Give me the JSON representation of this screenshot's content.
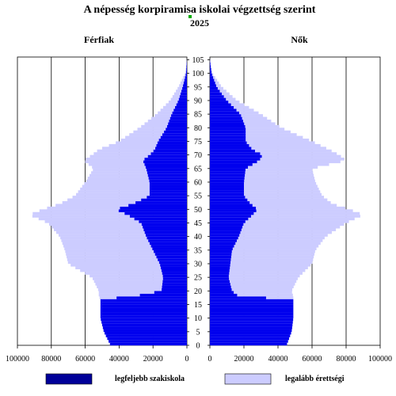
{
  "chart_data": {
    "type": "bar",
    "title": "A népesség korpiramisa iskolai végzettség szerint",
    "subtitle": "2025",
    "left_label": "Férfiak",
    "right_label": "Nők",
    "legend": [
      "legfeljebb szakiskola",
      "legalább érettségi"
    ],
    "colors": {
      "low": "#0000EE",
      "high": "#CCCCFF",
      "legend_low": "#000099"
    },
    "x_ticks": [
      "100000",
      "80000",
      "60000",
      "40000",
      "20000",
      "0"
    ],
    "x_ticks_right": [
      "0",
      "20000",
      "40000",
      "60000",
      "80000",
      "100000"
    ],
    "xlim": [
      0,
      100000
    ],
    "age_ticks": [
      "0",
      "5",
      "10",
      "15",
      "20",
      "25",
      "30",
      "35",
      "40",
      "45",
      "50",
      "55",
      "60",
      "65",
      "70",
      "75",
      "80",
      "85",
      "90",
      "95",
      "100",
      "105"
    ],
    "age_step": 5,
    "ages": [
      0,
      5,
      10,
      15,
      17,
      18,
      20,
      25,
      30,
      35,
      40,
      45,
      48,
      50,
      52,
      55,
      60,
      65,
      68,
      70,
      72,
      75,
      80,
      85,
      90,
      95,
      100,
      105
    ],
    "men": {
      "low": [
        45000,
        49000,
        51000,
        51000,
        51000,
        32000,
        15000,
        14000,
        16000,
        20000,
        24000,
        27000,
        35000,
        42000,
        32000,
        22000,
        22000,
        24000,
        26000,
        22000,
        19000,
        17000,
        12000,
        9000,
        5000,
        2500,
        500,
        0
      ],
      "total": [
        45000,
        49000,
        51000,
        51000,
        51000,
        52000,
        52000,
        56000,
        70000,
        72000,
        75000,
        82000,
        93000,
        85000,
        75000,
        66000,
        60000,
        55000,
        61000,
        56000,
        52000,
        40000,
        28000,
        18000,
        10000,
        5000,
        1000,
        0
      ]
    },
    "women": {
      "low": [
        45000,
        48000,
        49000,
        49000,
        49000,
        17000,
        13000,
        11000,
        12000,
        13000,
        17000,
        20000,
        25000,
        28000,
        24000,
        20000,
        20000,
        21000,
        29000,
        31000,
        25000,
        21000,
        21000,
        18000,
        10000,
        4000,
        1000,
        0
      ],
      "total": [
        45000,
        48000,
        49000,
        49000,
        49000,
        49000,
        48000,
        52000,
        60000,
        62000,
        68000,
        80000,
        90000,
        82000,
        72000,
        66000,
        62000,
        60000,
        80000,
        76000,
        70000,
        60000,
        42000,
        30000,
        16000,
        7000,
        1500,
        0
      ]
    }
  }
}
